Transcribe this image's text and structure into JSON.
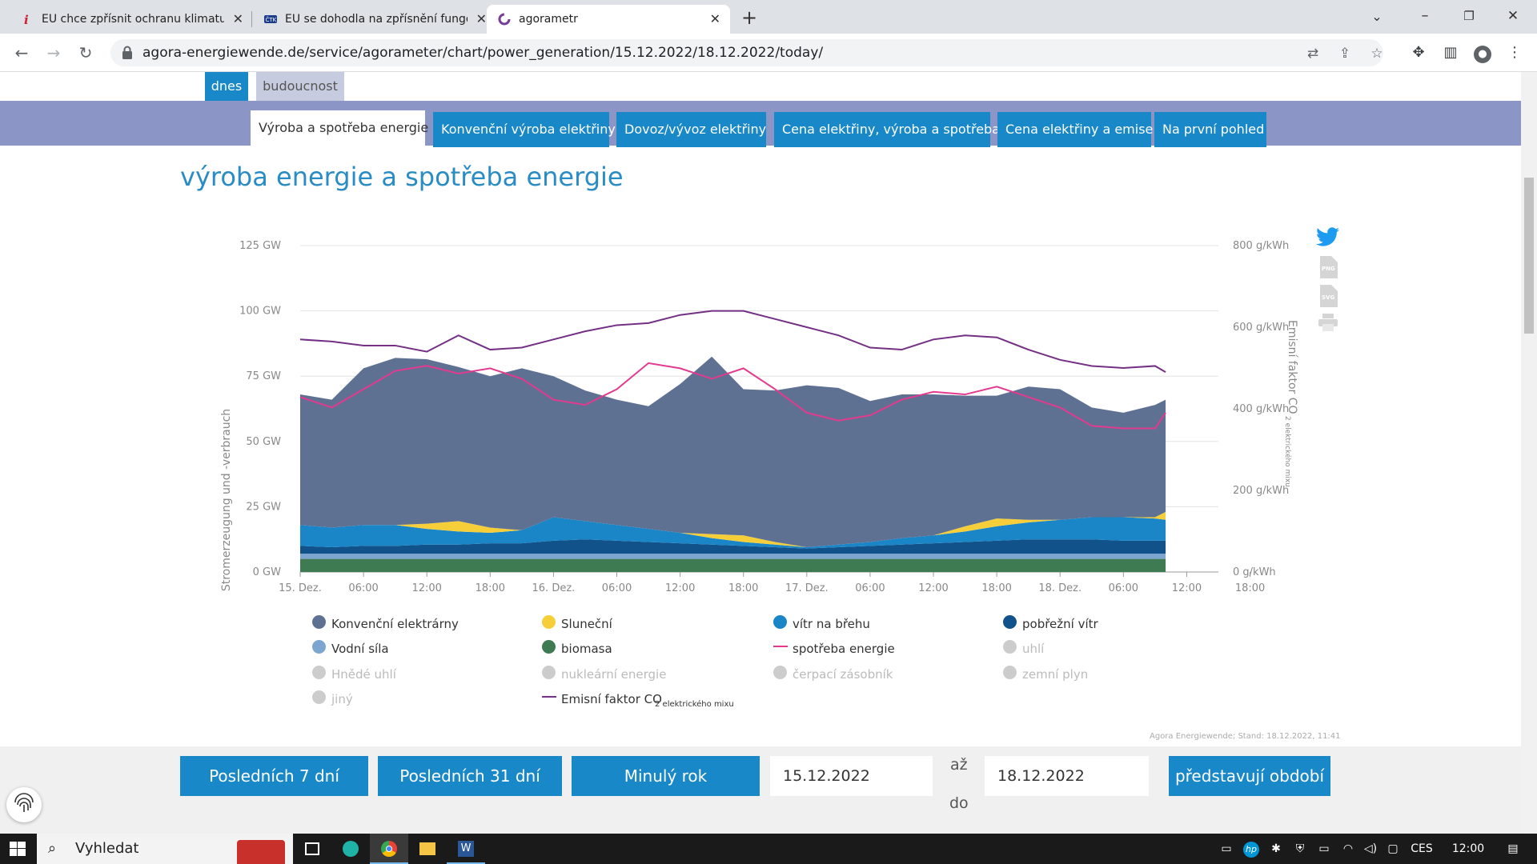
{
  "browser": {
    "tabs": [
      {
        "title": "EU chce zpřísnit ochranu klimatu.",
        "favicon": "i-icon"
      },
      {
        "title": "EU se dohodla na zpřísnění fungo",
        "favicon": "ctk-icon"
      },
      {
        "title": "agorametr",
        "favicon": "agora-icon"
      }
    ],
    "url": "agora-energiewende.de/service/agorameter/chart/power_generation/15.12.2022/18.12.2022/today/"
  },
  "subtabs": [
    "dnes",
    "budoucnost"
  ],
  "nav_tabs": [
    "Výroba a spotřeba energie",
    "Konvenční výroba elektřiny",
    "Dovoz/vývoz elektřiny",
    "Cena elektřiny, výroba a spotřeba",
    "Cena elektřiny a emise",
    "Na první pohled"
  ],
  "page_title": "výroba energie a spotřeba energie",
  "chart_data": {
    "type": "area",
    "ylabel": "Stromerzeugung und -verbrauch",
    "y2label_main": "Emisní faktor CO",
    "y2label_sub": "2 elektrického mixu",
    "yticks": [
      "0 GW",
      "25 GW",
      "50 GW",
      "75 GW",
      "100 GW",
      "125 GW"
    ],
    "ylim": [
      0,
      125
    ],
    "y2ticks": [
      "0 g/kWh",
      "200 g/kWh",
      "400 g/kWh",
      "600 g/kWh",
      "800 g/kWh"
    ],
    "y2lim": [
      0,
      800
    ],
    "x_labels": [
      "15. Dez.",
      "06:00",
      "12:00",
      "18:00",
      "16. Dez.",
      "06:00",
      "12:00",
      "18:00",
      "17. Dez.",
      "06:00",
      "12:00",
      "18:00",
      "18. Dez.",
      "06:00",
      "12:00",
      "18:00"
    ],
    "x_hours": [
      0,
      3,
      6,
      9,
      12,
      15,
      18,
      21,
      24,
      27,
      30,
      33,
      36,
      39,
      42,
      45,
      48,
      51,
      54,
      57,
      60,
      63,
      66,
      69,
      72,
      75,
      78,
      81,
      82
    ],
    "grid": true,
    "series": [
      {
        "name": "biomasa",
        "color": "#3e7a52",
        "values": [
          5,
          5,
          5,
          5,
          5,
          5,
          5,
          5,
          5,
          5,
          5,
          5,
          5,
          5,
          5,
          5,
          5,
          5,
          5,
          5,
          5,
          5,
          5,
          5,
          5,
          5,
          5,
          5,
          5
        ]
      },
      {
        "name": "Vodní síla",
        "color": "#7ca6cf",
        "values": [
          2,
          2,
          2,
          2,
          2,
          2,
          2,
          2,
          2,
          2,
          2,
          2,
          2,
          2,
          2,
          2,
          2,
          2,
          2,
          2,
          2,
          2,
          2,
          2,
          2,
          2,
          2,
          2,
          2
        ]
      },
      {
        "name": "pobřežní vítr",
        "color": "#11528a",
        "values": [
          3,
          2.5,
          3,
          3,
          3.5,
          3.5,
          4,
          4,
          5,
          5.5,
          5,
          4.5,
          4,
          3.5,
          3,
          2.5,
          2,
          2.5,
          3,
          3.5,
          4,
          4.5,
          5,
          5.5,
          5.5,
          5.5,
          5,
          5,
          5
        ]
      },
      {
        "name": "vítr na břehu",
        "color": "#1a86c7",
        "values": [
          8,
          7.5,
          8,
          8,
          6,
          5,
          4,
          5,
          9,
          7,
          6,
          5,
          4,
          2.5,
          1.5,
          1,
          0.5,
          1,
          1.5,
          2.5,
          3,
          4,
          5.5,
          6.5,
          7.5,
          8.5,
          9,
          8.5,
          8
        ]
      },
      {
        "name": "Sluneční",
        "color": "#f5ce3a",
        "values": [
          0,
          0,
          0,
          0,
          2,
          4,
          2,
          0,
          0,
          0,
          0,
          0,
          0,
          1.5,
          2.5,
          1,
          0,
          0,
          0,
          0,
          0,
          2,
          3,
          1,
          0,
          0,
          0,
          0.5,
          3
        ]
      },
      {
        "name": "Konvenční elektrárny",
        "color": "#5f7192",
        "values": [
          50,
          49,
          60,
          64,
          63,
          59,
          58,
          62,
          54,
          50,
          48,
          47,
          57,
          68,
          56,
          58,
          62,
          60,
          54,
          55,
          54,
          50,
          47,
          51,
          50,
          42,
          40,
          43,
          43
        ]
      }
    ],
    "consumption": {
      "name": "spotřeba energie",
      "color": "#e23a8e",
      "values": [
        67,
        63,
        70,
        77,
        79,
        76,
        78,
        74,
        66,
        64,
        70,
        80,
        78,
        74,
        78,
        70,
        61,
        58,
        60,
        66,
        69,
        68,
        71,
        67,
        63,
        56,
        55,
        55,
        61
      ]
    },
    "emission": {
      "name": "Emisní faktor CO",
      "name_sub": "2 elektrického mixu",
      "color": "#733084",
      "values": [
        570,
        565,
        555,
        555,
        540,
        580,
        545,
        550,
        570,
        590,
        605,
        610,
        630,
        640,
        640,
        620,
        600,
        580,
        550,
        545,
        570,
        580,
        575,
        545,
        520,
        505,
        500,
        505,
        490
      ]
    },
    "legend": [
      {
        "name": "Konvenční elektrárny",
        "color": "#5f7192",
        "on": true,
        "kind": "dot"
      },
      {
        "name": "Sluneční",
        "color": "#f5ce3a",
        "on": true,
        "kind": "dot"
      },
      {
        "name": "vítr na břehu",
        "color": "#1a86c7",
        "on": true,
        "kind": "dot"
      },
      {
        "name": "pobřežní vítr",
        "color": "#11528a",
        "on": true,
        "kind": "dot"
      },
      {
        "name": "Vodní síla",
        "color": "#7ca6cf",
        "on": true,
        "kind": "dot"
      },
      {
        "name": "biomasa",
        "color": "#3e7a52",
        "on": true,
        "kind": "dot"
      },
      {
        "name": "spotřeba energie",
        "color": "#e23a8e",
        "on": true,
        "kind": "line"
      },
      {
        "name": "uhlí",
        "color": "#cccccc",
        "on": false,
        "kind": "dot"
      },
      {
        "name": "Hnědé uhlí",
        "color": "#cccccc",
        "on": false,
        "kind": "dot"
      },
      {
        "name": "nukleární energie",
        "color": "#cccccc",
        "on": false,
        "kind": "dot"
      },
      {
        "name": "čerpací zásobník",
        "color": "#cccccc",
        "on": false,
        "kind": "dot"
      },
      {
        "name": "zemní plyn",
        "color": "#cccccc",
        "on": false,
        "kind": "dot"
      },
      {
        "name": "jiný",
        "color": "#cccccc",
        "on": false,
        "kind": "dot"
      },
      {
        "name": "Emisní faktor CO",
        "sub": "2 elektrického mixu",
        "color": "#733084",
        "on": true,
        "kind": "line"
      }
    ],
    "source": "Agora Energiewende; Stand: 18.12.2022, 11:41"
  },
  "export_icons": [
    "twitter-icon",
    "png-icon",
    "svg-icon",
    "print-icon"
  ],
  "controls": {
    "btn_7": "Posledních 7 dní",
    "btn_31": "Posledních 31 dní",
    "btn_year": "Minulý rok",
    "from_date": "15.12.2022",
    "until_label": "až",
    "until_label2": "do",
    "to_date": "18.12.2022",
    "submit": "představují období"
  },
  "taskbar": {
    "search_placeholder": "Vyhledat",
    "lang": "CES",
    "time": "12:00"
  }
}
